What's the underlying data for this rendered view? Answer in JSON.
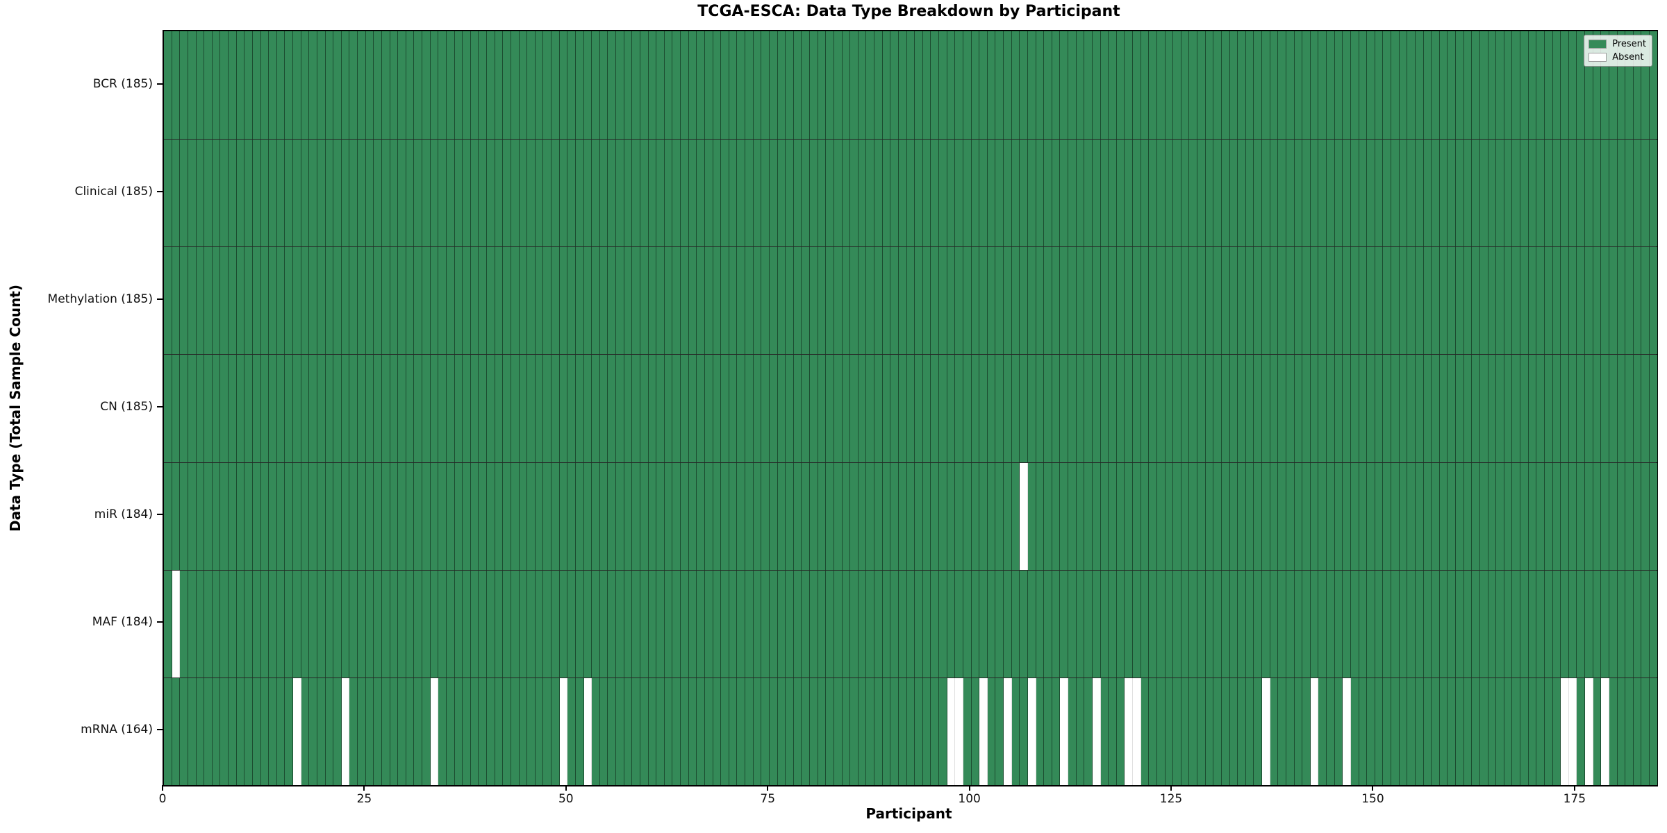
{
  "title": "TCGA-ESCA: Data Type Breakdown by Participant",
  "x_axis": {
    "label": "Participant",
    "ticks": [
      0,
      25,
      50,
      75,
      100,
      125,
      150,
      175
    ]
  },
  "y_axis": {
    "label": "Data Type (Total Sample Count)"
  },
  "legend": [
    {
      "label": "Present",
      "color": "#348a58"
    },
    {
      "label": "Absent",
      "color": "#ffffff"
    }
  ],
  "chart_data": {
    "type": "heatmap",
    "title": "TCGA-ESCA: Data Type Breakdown by Participant",
    "xlabel": "Participant",
    "ylabel": "Data Type (Total Sample Count)",
    "n_participants": 185,
    "x_ticks": [
      0,
      25,
      50,
      75,
      100,
      125,
      150,
      175
    ],
    "xlim": [
      0,
      185
    ],
    "colors": {
      "present": "#348a58",
      "absent": "#ffffff"
    },
    "legend_position": "upper right",
    "grid": "per-participant vertical lines, per-row horizontal lines",
    "rows": [
      {
        "label": "BCR (185)",
        "data_type": "BCR",
        "present_count": 185,
        "absent_participants": []
      },
      {
        "label": "Clinical (185)",
        "data_type": "Clinical",
        "present_count": 185,
        "absent_participants": []
      },
      {
        "label": "Methylation (185)",
        "data_type": "Methylation",
        "present_count": 185,
        "absent_participants": []
      },
      {
        "label": "CN (185)",
        "data_type": "CN",
        "present_count": 185,
        "absent_participants": []
      },
      {
        "label": "miR (184)",
        "data_type": "miR",
        "present_count": 184,
        "absent_participants": [
          106
        ]
      },
      {
        "label": "MAF (184)",
        "data_type": "MAF",
        "present_count": 184,
        "absent_participants": [
          1
        ]
      },
      {
        "label": "mRNA (164)",
        "data_type": "mRNA",
        "present_count": 164,
        "absent_participants": [
          16,
          22,
          33,
          49,
          52,
          97,
          98,
          101,
          104,
          107,
          111,
          115,
          119,
          120,
          136,
          142,
          146,
          173,
          174,
          176,
          178
        ]
      }
    ]
  }
}
